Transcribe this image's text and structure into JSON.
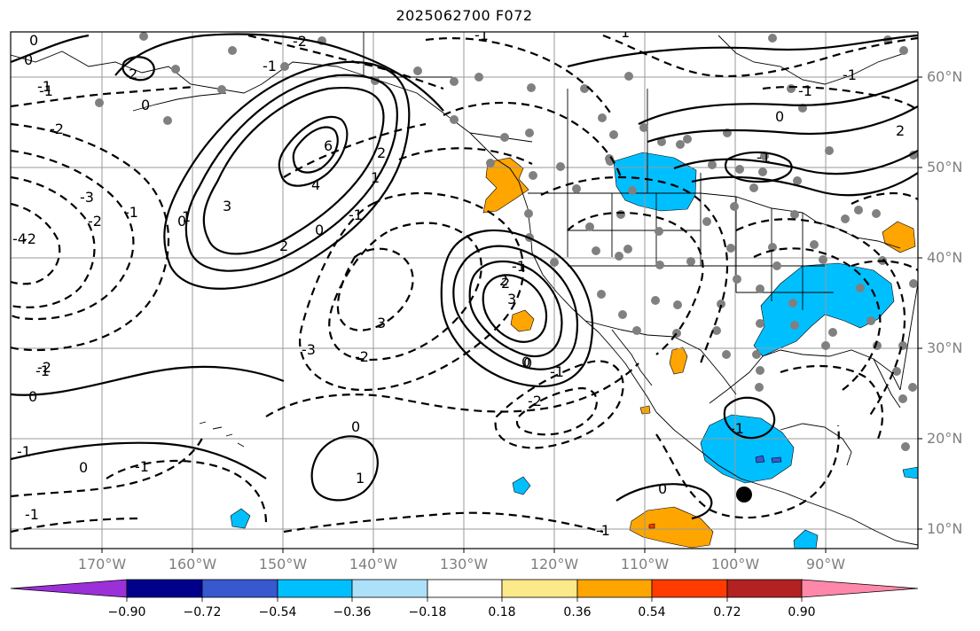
{
  "title": "2025062700 F072",
  "lat_labels": [
    "60°N",
    "50°N",
    "40°N",
    "30°N",
    "20°N",
    "10°N"
  ],
  "lon_labels": [
    "170°W",
    "160°W",
    "150°W",
    "140°W",
    "130°W",
    "120°W",
    "110°W",
    "100°W",
    "90°W"
  ],
  "colorbar": {
    "ticks": [
      "−0.90",
      "−0.72",
      "−0.54",
      "−0.36",
      "−0.18",
      "0.18",
      "0.36",
      "0.54",
      "0.72",
      "0.90"
    ],
    "colors": [
      "#9b30d8",
      "#00008b",
      "#3858d0",
      "#00bfff",
      "#ade1fa",
      "#ffffff",
      "#fce98a",
      "#ffa500",
      "#ff3b00",
      "#b22222",
      "#ff88aa"
    ]
  },
  "contour_labels": [
    "0",
    "0",
    "-1",
    "-2",
    "2",
    "0",
    "-2",
    "-1",
    "0",
    "-1",
    "-2",
    "-3",
    "-4",
    "-2",
    "-1",
    "3",
    "6",
    "4",
    "2",
    "3",
    "1",
    "2",
    "0",
    "1",
    "2",
    "-1",
    "-1",
    "0",
    "-3",
    "-2",
    "-1",
    "-2",
    "2",
    "3",
    "0",
    "-1",
    "-2",
    "0",
    "-1",
    "0",
    "1",
    "-1",
    "0",
    "0",
    "-1",
    "-1",
    "2",
    "-1",
    "-1",
    "-1",
    "-1",
    "1",
    "0",
    "-1"
  ]
}
